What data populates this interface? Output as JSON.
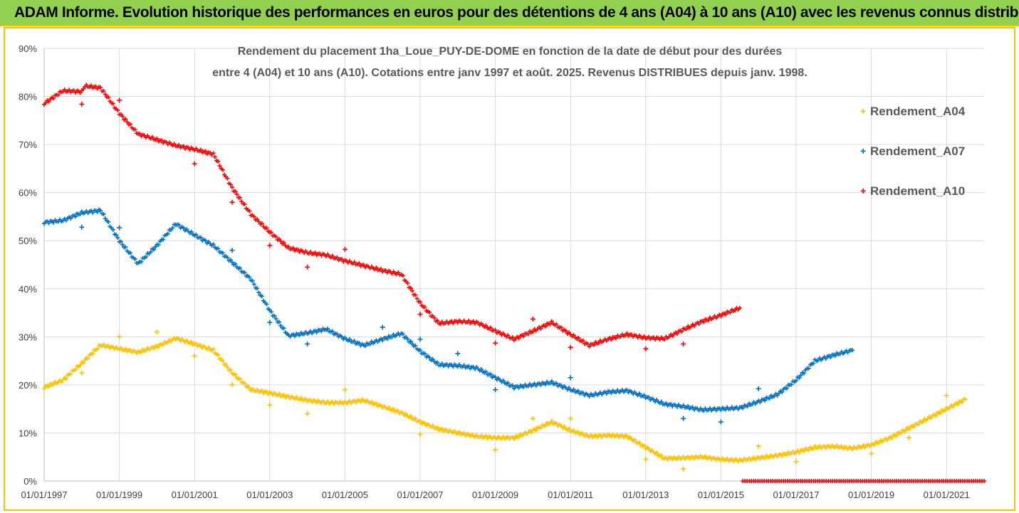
{
  "header": {
    "title": "ADAM Informe. Evolution historique des performances en euros pour des détentions de 4 ans (A04) à 10 ans (A10) avec les revenus connus distribués"
  },
  "colors": {
    "title_bg": "#92d050",
    "border": "#f5c400",
    "grid": "#d9d9d9",
    "A04": "#ffc000",
    "A07": "#0070c0",
    "A10": "#ff0000"
  },
  "chart_data": {
    "type": "scatter",
    "subtitle_line1": "Rendement du placement 1ha_Loue_PUY-DE-DOME en fonction de la date de début pour des durées",
    "subtitle_line2": "entre 4 (A04) et 10 ans (A10). Cotations entre janv 1997 et août. 2025. Revenus DISTRIBUES depuis janv. 1998.",
    "xlabel": "",
    "ylabel": "",
    "xlim": [
      "1997-01-01",
      "2022-01-01"
    ],
    "ylim": [
      0,
      0.9
    ],
    "grid": true,
    "legend_position": "right",
    "x_tick_labels": [
      "01/01/1997",
      "01/01/1999",
      "01/01/2001",
      "01/01/2003",
      "01/01/2005",
      "01/01/2007",
      "01/01/2009",
      "01/01/2011",
      "01/01/2013",
      "01/01/2015",
      "01/01/2017",
      "01/01/2019",
      "01/01/2021"
    ],
    "y_tick_labels": [
      "0%",
      "10%",
      "20%",
      "30%",
      "40%",
      "50%",
      "60%",
      "70%",
      "80%",
      "90%"
    ],
    "series": [
      {
        "name": "Rendement_A04",
        "color": "#ffc000",
        "points": [
          [
            "1997-01-01",
            0.195
          ],
          [
            "1997-07-01",
            0.21
          ],
          [
            "1998-01-01",
            0.245
          ],
          [
            "1998-07-01",
            0.283
          ],
          [
            "1999-01-01",
            0.275
          ],
          [
            "1999-07-01",
            0.268
          ],
          [
            "2000-01-01",
            0.28
          ],
          [
            "2000-07-01",
            0.297
          ],
          [
            "2001-01-01",
            0.285
          ],
          [
            "2001-07-01",
            0.272
          ],
          [
            "2002-01-01",
            0.225
          ],
          [
            "2002-07-01",
            0.19
          ],
          [
            "2003-01-01",
            0.183
          ],
          [
            "2003-07-01",
            0.175
          ],
          [
            "2004-01-01",
            0.168
          ],
          [
            "2004-07-01",
            0.163
          ],
          [
            "2005-01-01",
            0.163
          ],
          [
            "2005-07-01",
            0.168
          ],
          [
            "2006-01-01",
            0.155
          ],
          [
            "2006-07-01",
            0.142
          ],
          [
            "2007-01-01",
            0.123
          ],
          [
            "2007-07-01",
            0.108
          ],
          [
            "2008-01-01",
            0.1
          ],
          [
            "2008-07-01",
            0.093
          ],
          [
            "2009-01-01",
            0.09
          ],
          [
            "2009-07-01",
            0.09
          ],
          [
            "2010-01-01",
            0.105
          ],
          [
            "2010-07-01",
            0.123
          ],
          [
            "2011-01-01",
            0.105
          ],
          [
            "2011-07-01",
            0.093
          ],
          [
            "2012-01-01",
            0.095
          ],
          [
            "2012-07-01",
            0.093
          ],
          [
            "2013-01-01",
            0.07
          ],
          [
            "2013-07-01",
            0.047
          ],
          [
            "2014-01-01",
            0.048
          ],
          [
            "2014-07-01",
            0.05
          ],
          [
            "2015-01-01",
            0.045
          ],
          [
            "2015-07-01",
            0.043
          ],
          [
            "2016-01-01",
            0.048
          ],
          [
            "2016-07-01",
            0.053
          ],
          [
            "2017-01-01",
            0.06
          ],
          [
            "2017-07-01",
            0.07
          ],
          [
            "2018-01-01",
            0.072
          ],
          [
            "2018-07-01",
            0.068
          ],
          [
            "2019-01-01",
            0.075
          ],
          [
            "2019-07-01",
            0.09
          ],
          [
            "2020-01-01",
            0.11
          ],
          [
            "2020-07-01",
            0.13
          ],
          [
            "2021-01-01",
            0.15
          ],
          [
            "2021-07-01",
            0.17
          ]
        ],
        "outliers": [
          [
            "1998-01-01",
            0.225
          ],
          [
            "1999-01-01",
            0.3
          ],
          [
            "2000-01-01",
            0.31
          ],
          [
            "2001-01-01",
            0.26
          ],
          [
            "2002-01-01",
            0.2
          ],
          [
            "2003-01-01",
            0.158
          ],
          [
            "2004-01-01",
            0.14
          ],
          [
            "2005-01-01",
            0.19
          ],
          [
            "2007-01-01",
            0.097
          ],
          [
            "2009-01-01",
            0.065
          ],
          [
            "2010-01-01",
            0.13
          ],
          [
            "2011-01-01",
            0.13
          ],
          [
            "2013-01-01",
            0.045
          ],
          [
            "2014-01-01",
            0.025
          ],
          [
            "2016-01-01",
            0.072
          ],
          [
            "2017-01-01",
            0.04
          ],
          [
            "2019-01-01",
            0.057
          ],
          [
            "2020-01-01",
            0.09
          ],
          [
            "2021-01-01",
            0.178
          ]
        ]
      },
      {
        "name": "Rendement_A07",
        "color": "#0070c0",
        "points": [
          [
            "1997-01-01",
            0.538
          ],
          [
            "1997-07-01",
            0.542
          ],
          [
            "1998-01-01",
            0.558
          ],
          [
            "1998-07-01",
            0.563
          ],
          [
            "1999-01-01",
            0.5
          ],
          [
            "1999-07-01",
            0.452
          ],
          [
            "2000-01-01",
            0.49
          ],
          [
            "2000-07-01",
            0.535
          ],
          [
            "2001-01-01",
            0.512
          ],
          [
            "2001-07-01",
            0.49
          ],
          [
            "2002-01-01",
            0.455
          ],
          [
            "2002-07-01",
            0.42
          ],
          [
            "2003-01-01",
            0.355
          ],
          [
            "2003-07-01",
            0.302
          ],
          [
            "2004-01-01",
            0.308
          ],
          [
            "2004-07-01",
            0.316
          ],
          [
            "2005-01-01",
            0.296
          ],
          [
            "2005-07-01",
            0.282
          ],
          [
            "2006-01-01",
            0.295
          ],
          [
            "2006-07-01",
            0.307
          ],
          [
            "2007-01-01",
            0.27
          ],
          [
            "2007-07-01",
            0.242
          ],
          [
            "2008-01-01",
            0.24
          ],
          [
            "2008-07-01",
            0.235
          ],
          [
            "2009-01-01",
            0.215
          ],
          [
            "2009-07-01",
            0.195
          ],
          [
            "2010-01-01",
            0.2
          ],
          [
            "2010-07-01",
            0.205
          ],
          [
            "2011-01-01",
            0.19
          ],
          [
            "2011-07-01",
            0.178
          ],
          [
            "2012-01-01",
            0.185
          ],
          [
            "2012-07-01",
            0.188
          ],
          [
            "2013-01-01",
            0.175
          ],
          [
            "2013-07-01",
            0.16
          ],
          [
            "2014-01-01",
            0.155
          ],
          [
            "2014-07-01",
            0.148
          ],
          [
            "2015-01-01",
            0.15
          ],
          [
            "2015-07-01",
            0.152
          ],
          [
            "2016-01-01",
            0.165
          ],
          [
            "2016-07-01",
            0.18
          ],
          [
            "2017-01-01",
            0.21
          ],
          [
            "2017-07-01",
            0.25
          ],
          [
            "2018-01-01",
            0.262
          ],
          [
            "2018-07-01",
            0.272
          ]
        ],
        "outliers": [
          [
            "1998-01-01",
            0.528
          ],
          [
            "1999-01-01",
            0.527
          ],
          [
            "2002-01-01",
            0.48
          ],
          [
            "2003-01-01",
            0.33
          ],
          [
            "2004-01-01",
            0.285
          ],
          [
            "2006-01-01",
            0.32
          ],
          [
            "2007-01-01",
            0.295
          ],
          [
            "2008-01-01",
            0.265
          ],
          [
            "2009-01-01",
            0.19
          ],
          [
            "2011-01-01",
            0.215
          ],
          [
            "2014-01-01",
            0.13
          ],
          [
            "2015-01-01",
            0.123
          ],
          [
            "2016-01-01",
            0.192
          ]
        ]
      },
      {
        "name": "Rendement_A10",
        "color": "#ff0000",
        "points": [
          [
            "1997-01-01",
            0.785
          ],
          [
            "1997-07-01",
            0.812
          ],
          [
            "1998-01-01",
            0.81
          ],
          [
            "1998-02-01",
            0.822
          ],
          [
            "1998-07-01",
            0.818
          ],
          [
            "1999-01-01",
            0.765
          ],
          [
            "1999-07-01",
            0.722
          ],
          [
            "2000-01-01",
            0.71
          ],
          [
            "2000-07-01",
            0.698
          ],
          [
            "2001-01-01",
            0.69
          ],
          [
            "2001-07-01",
            0.68
          ],
          [
            "2002-01-01",
            0.61
          ],
          [
            "2002-07-01",
            0.555
          ],
          [
            "2003-01-01",
            0.518
          ],
          [
            "2003-07-01",
            0.485
          ],
          [
            "2004-01-01",
            0.475
          ],
          [
            "2004-07-01",
            0.47
          ],
          [
            "2005-01-01",
            0.458
          ],
          [
            "2005-07-01",
            0.448
          ],
          [
            "2006-01-01",
            0.438
          ],
          [
            "2006-07-01",
            0.43
          ],
          [
            "2007-01-01",
            0.37
          ],
          [
            "2007-07-01",
            0.328
          ],
          [
            "2008-01-01",
            0.332
          ],
          [
            "2008-07-01",
            0.33
          ],
          [
            "2009-01-01",
            0.312
          ],
          [
            "2009-07-01",
            0.295
          ],
          [
            "2010-01-01",
            0.312
          ],
          [
            "2010-07-01",
            0.33
          ],
          [
            "2011-01-01",
            0.305
          ],
          [
            "2011-07-01",
            0.282
          ],
          [
            "2012-01-01",
            0.295
          ],
          [
            "2012-07-01",
            0.305
          ],
          [
            "2013-01-01",
            0.298
          ],
          [
            "2013-07-01",
            0.296
          ],
          [
            "2014-01-01",
            0.315
          ],
          [
            "2014-07-01",
            0.332
          ],
          [
            "2015-01-01",
            0.345
          ],
          [
            "2015-07-01",
            0.36
          ]
        ],
        "outliers": [
          [
            "1998-01-01",
            0.784
          ],
          [
            "1999-01-01",
            0.792
          ],
          [
            "2001-01-01",
            0.66
          ],
          [
            "2002-01-01",
            0.58
          ],
          [
            "2003-01-01",
            0.49
          ],
          [
            "2004-01-01",
            0.445
          ],
          [
            "2005-01-01",
            0.482
          ],
          [
            "2007-01-01",
            0.347
          ],
          [
            "2009-01-01",
            0.287
          ],
          [
            "2010-01-01",
            0.337
          ],
          [
            "2011-01-01",
            0.278
          ],
          [
            "2013-01-01",
            0.275
          ],
          [
            "2014-01-01",
            0.285
          ]
        ],
        "zero_line": [
          "2015-08-01",
          "2022-01-01",
          0
        ]
      }
    ]
  }
}
